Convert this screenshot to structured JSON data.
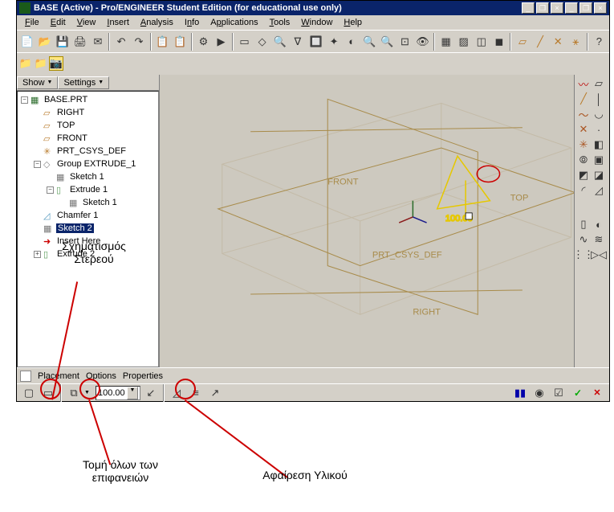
{
  "window": {
    "title": "BASE (Active) - Pro/ENGINEER Student Edition (for educational use only)"
  },
  "menu": [
    "File",
    "Edit",
    "View",
    "Insert",
    "Analysis",
    "Info",
    "Applications",
    "Tools",
    "Window",
    "Help"
  ],
  "panel": {
    "show": "Show",
    "settings": "Settings"
  },
  "tree": [
    {
      "indent": 0,
      "label": "BASE.PRT",
      "icon": "part",
      "exp": "-"
    },
    {
      "indent": 1,
      "label": "RIGHT",
      "icon": "plane-orange"
    },
    {
      "indent": 1,
      "label": "TOP",
      "icon": "plane-orange"
    },
    {
      "indent": 1,
      "label": "FRONT",
      "icon": "plane-orange"
    },
    {
      "indent": 1,
      "label": "PRT_CSYS_DEF",
      "icon": "csys"
    },
    {
      "indent": 1,
      "label": "Group EXTRUDE_1",
      "icon": "group",
      "exp": "-"
    },
    {
      "indent": 2,
      "label": "Sketch 1",
      "icon": "sketch"
    },
    {
      "indent": 2,
      "label": "Extrude 1",
      "icon": "extrude",
      "exp": "-"
    },
    {
      "indent": 3,
      "label": "Sketch 1",
      "icon": "sketch"
    },
    {
      "indent": 1,
      "label": "Chamfer 1",
      "icon": "chamfer"
    },
    {
      "indent": 1,
      "label": "Sketch 2",
      "icon": "sketch",
      "sel": true
    },
    {
      "indent": 1,
      "label": "Insert Here",
      "icon": "insert"
    },
    {
      "indent": 1,
      "label": "Extrude 2",
      "icon": "extrude",
      "exp": "+"
    }
  ],
  "viewport_labels": {
    "front": "FRONT",
    "top": "TOP",
    "prt": "PRT_CSYS_DEF",
    "right": "RIGHT"
  },
  "bottom_tabs": [
    "Placement",
    "Options",
    "Properties"
  ],
  "depth_value": "100.00",
  "annotations": {
    "shape_solid": "Σχηματισμός\nΣτερεού",
    "through_all": "Τομή όλων των\nεπιφανειών",
    "remove_material": "Αφαίρεση Υλικού"
  },
  "colors": {
    "bg": "#d4d0c8",
    "view": "#cdc9bf",
    "titlebar": "#0a246a",
    "sel": "#0a246a",
    "wire": "#9c886a",
    "planes": "#a88b4a",
    "sketch": "#e6c800",
    "axis_y": "#2a6b2a",
    "axis_x": "#8a1a1a",
    "axis_z": "#1a1a8a",
    "ellipse": "#c00"
  }
}
